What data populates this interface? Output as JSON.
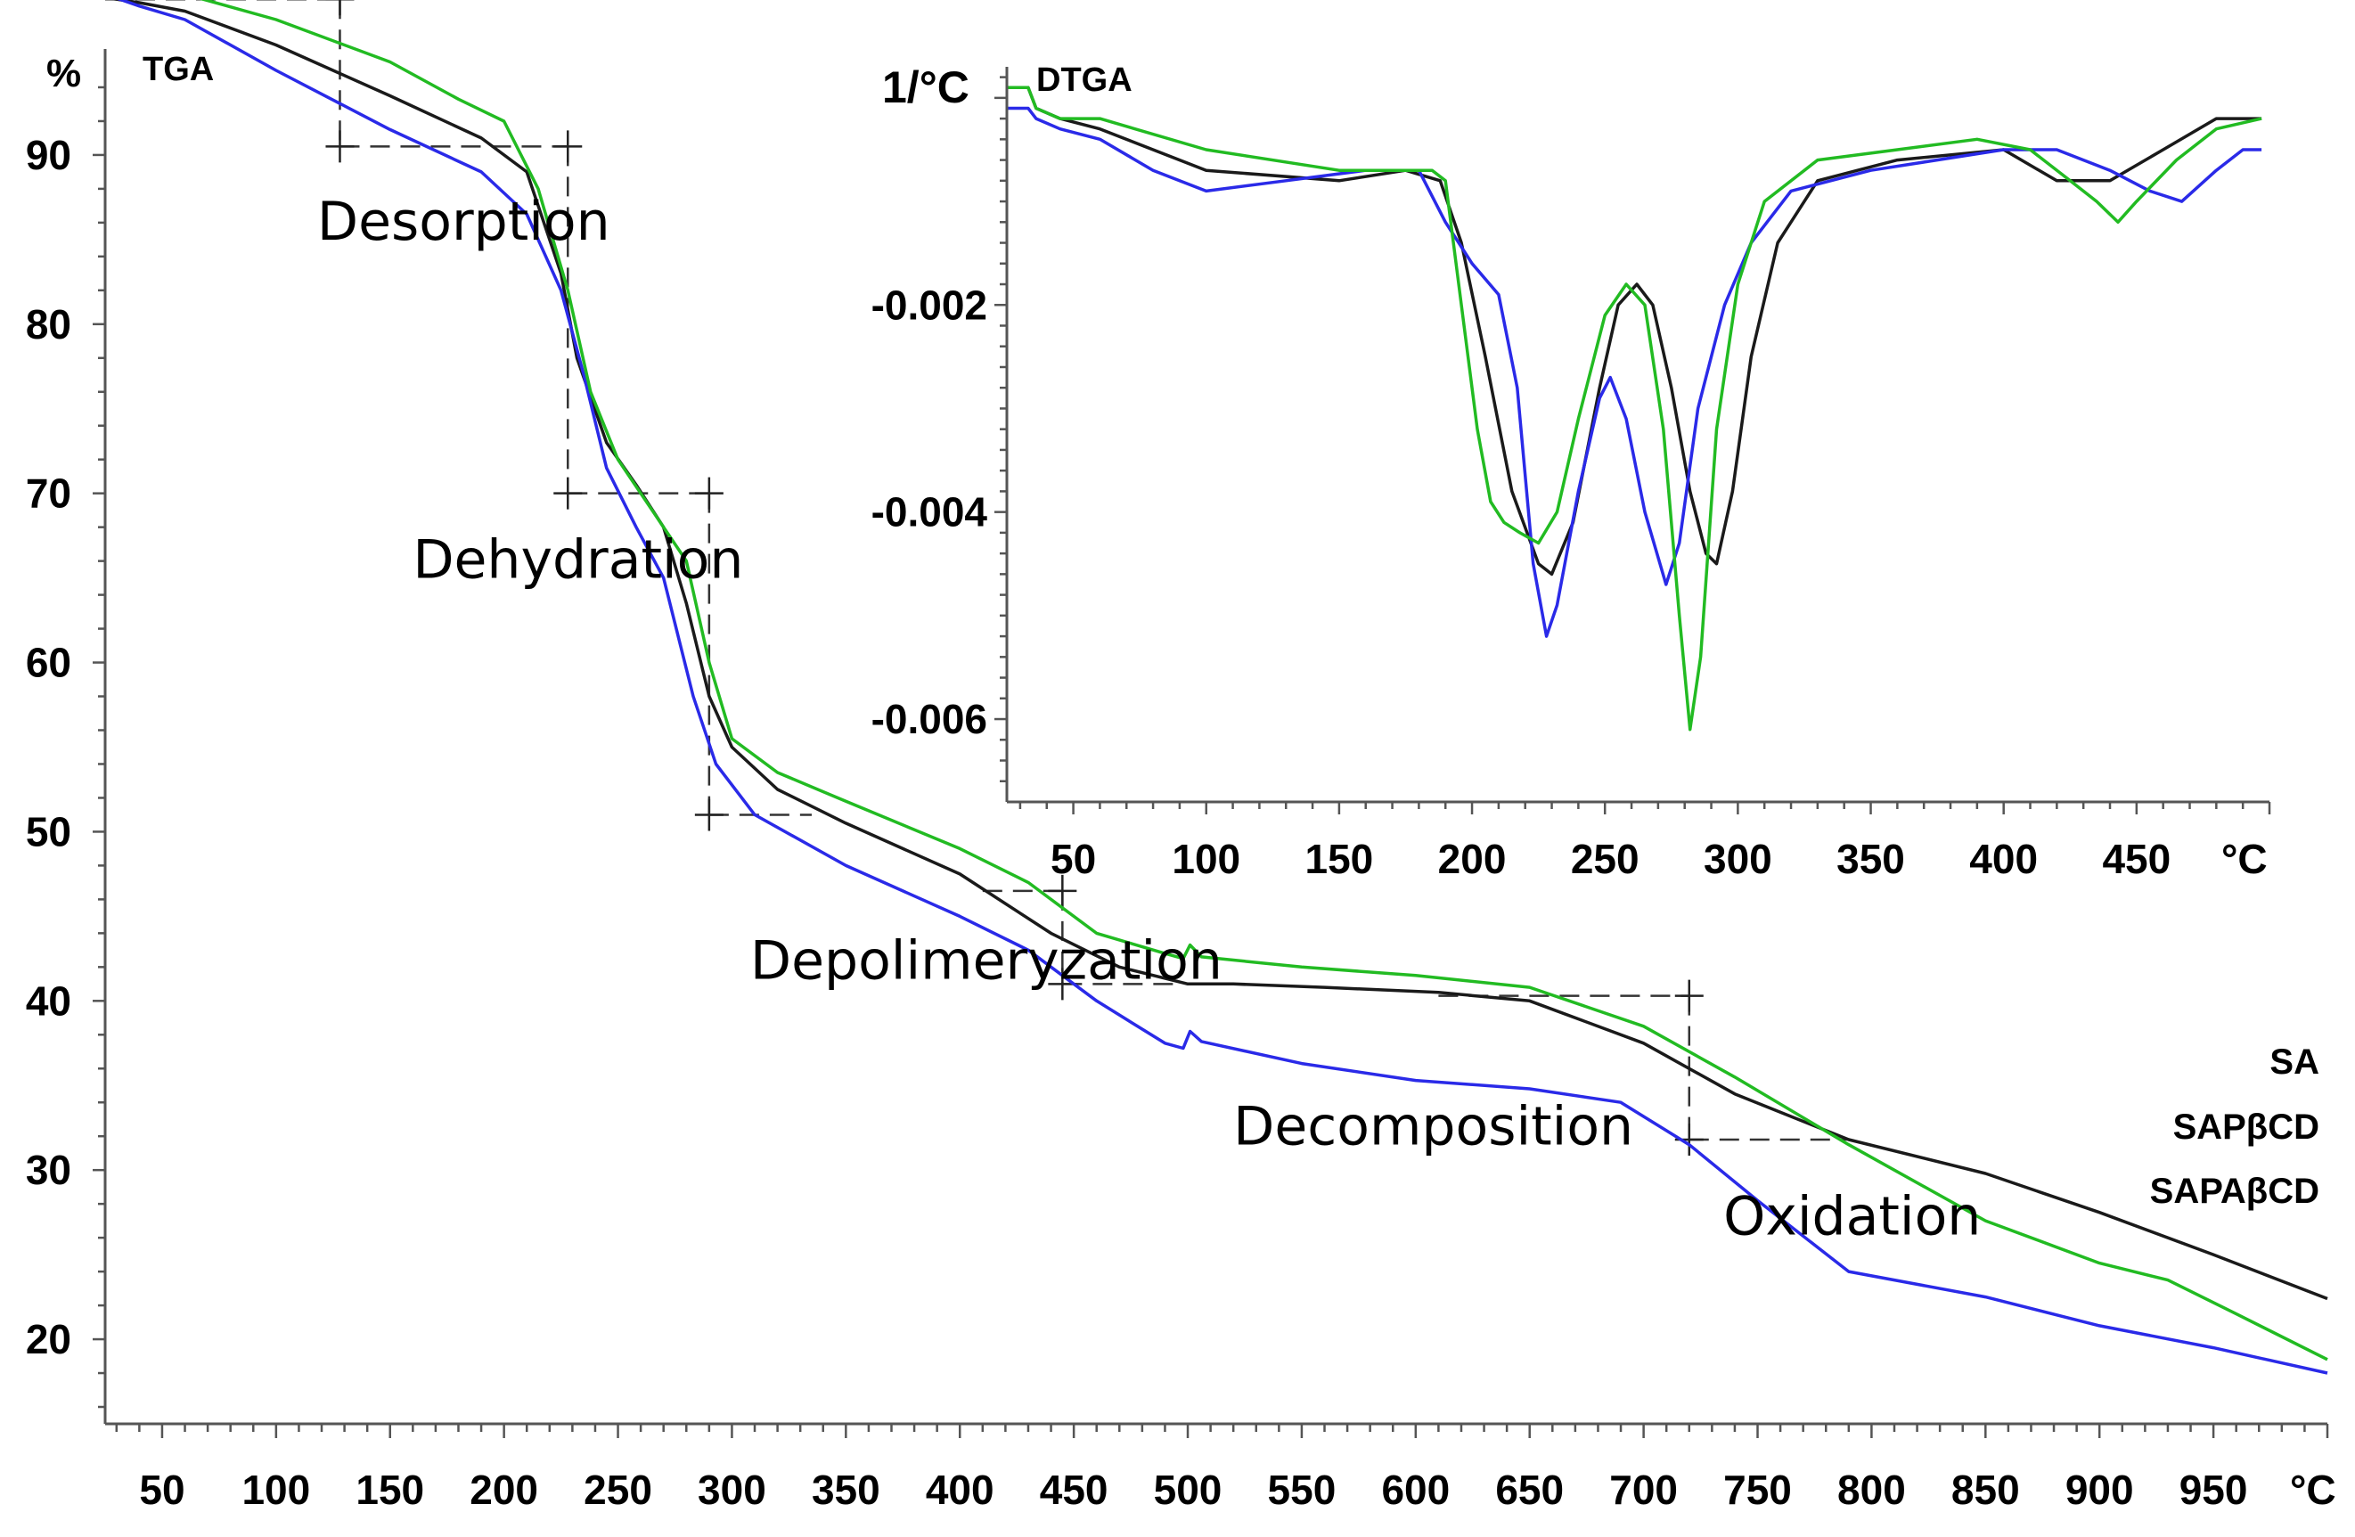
{
  "chart_data": [
    {
      "type": "line",
      "title": "TGA",
      "ylabel": "%",
      "xlabel": "°C",
      "xlim": [
        25,
        1000
      ],
      "ylim": [
        15,
        96
      ],
      "x_ticks": [
        50,
        100,
        150,
        200,
        250,
        300,
        350,
        400,
        450,
        500,
        550,
        600,
        650,
        700,
        750,
        800,
        850,
        900,
        950
      ],
      "y_ticks": [
        20,
        30,
        40,
        50,
        60,
        70,
        80,
        90
      ],
      "stages": [
        {
          "label": "Desorption",
          "x": 118,
          "y": 85
        },
        {
          "label": "Dehydration",
          "x": 160,
          "y": 65
        },
        {
          "label": "Depolimeryzation",
          "x": 308,
          "y": 41.3
        },
        {
          "label": "Decomposition",
          "x": 520,
          "y": 31.5
        },
        {
          "label": "Oxidation",
          "x": 735,
          "y": 26.2
        }
      ],
      "series": [
        {
          "name": "SA",
          "color": "#1a1a1a",
          "points": [
            [
              25,
              99.3
            ],
            [
              40,
              99
            ],
            [
              60,
              98.5
            ],
            [
              100,
              96.5
            ],
            [
              150,
              93.5
            ],
            [
              190,
              91
            ],
            [
              210,
              89
            ],
            [
              225,
              83
            ],
            [
              232,
              78
            ],
            [
              245,
              73
            ],
            [
              258,
              70.5
            ],
            [
              270,
              68
            ],
            [
              280,
              63.5
            ],
            [
              290,
              58
            ],
            [
              300,
              55
            ],
            [
              320,
              52.5
            ],
            [
              350,
              50.5
            ],
            [
              400,
              47.5
            ],
            [
              440,
              44
            ],
            [
              470,
              42
            ],
            [
              500,
              41
            ],
            [
              520,
              41
            ],
            [
              560,
              40.8
            ],
            [
              610,
              40.5
            ],
            [
              650,
              40
            ],
            [
              700,
              37.5
            ],
            [
              740,
              34.5
            ],
            [
              790,
              31.8
            ],
            [
              850,
              29.8
            ],
            [
              900,
              27.5
            ],
            [
              950,
              25
            ],
            [
              1000,
              22.4
            ]
          ]
        },
        {
          "name": "SAPβCD",
          "color": "#2a2ae8",
          "points": [
            [
              25,
              99.5
            ],
            [
              40,
              98.8
            ],
            [
              60,
              98
            ],
            [
              100,
              95
            ],
            [
              150,
              91.5
            ],
            [
              190,
              89
            ],
            [
              210,
              86.5
            ],
            [
              225,
              82
            ],
            [
              235,
              77
            ],
            [
              245,
              71.5
            ],
            [
              258,
              68
            ],
            [
              270,
              65
            ],
            [
              283,
              58
            ],
            [
              293,
              54
            ],
            [
              310,
              51
            ],
            [
              350,
              48
            ],
            [
              400,
              45
            ],
            [
              430,
              43
            ],
            [
              460,
              40
            ],
            [
              490,
              37.5
            ],
            [
              498,
              37.2
            ],
            [
              501,
              38.2
            ],
            [
              506,
              37.6
            ],
            [
              550,
              36.3
            ],
            [
              600,
              35.3
            ],
            [
              650,
              34.8
            ],
            [
              690,
              34
            ],
            [
              720,
              31.5
            ],
            [
              750,
              28.2
            ],
            [
              790,
              24
            ],
            [
              850,
              22.5
            ],
            [
              900,
              20.8
            ],
            [
              950,
              19.5
            ],
            [
              1000,
              18
            ]
          ]
        },
        {
          "name": "SAPAβCD",
          "color": "#22bb22",
          "points": [
            [
              25,
              99.3
            ],
            [
              40,
              99.8
            ],
            [
              60,
              99.5
            ],
            [
              100,
              98
            ],
            [
              150,
              95.5
            ],
            [
              180,
              93.3
            ],
            [
              200,
              92
            ],
            [
              215,
              88
            ],
            [
              228,
              82
            ],
            [
              238,
              76
            ],
            [
              250,
              72
            ],
            [
              265,
              69
            ],
            [
              280,
              66
            ],
            [
              290,
              60
            ],
            [
              300,
              55.5
            ],
            [
              320,
              53.5
            ],
            [
              350,
              51.8
            ],
            [
              400,
              49
            ],
            [
              430,
              47
            ],
            [
              460,
              44
            ],
            [
              490,
              42.8
            ],
            [
              498,
              42.5
            ],
            [
              501,
              43.3
            ],
            [
              506,
              42.6
            ],
            [
              550,
              42
            ],
            [
              600,
              41.5
            ],
            [
              650,
              40.8
            ],
            [
              700,
              38.5
            ],
            [
              740,
              35.5
            ],
            [
              790,
              31.5
            ],
            [
              850,
              27
            ],
            [
              900,
              24.5
            ],
            [
              930,
              23.5
            ],
            [
              960,
              21.5
            ],
            [
              1000,
              18.8
            ]
          ]
        }
      ],
      "guides": [
        [
          [
            25,
            99.2
          ],
          [
            128,
            99.2
          ]
        ],
        [
          [
            128,
            99.2
          ],
          [
            128,
            90.5
          ]
        ],
        [
          [
            128,
            90.5
          ],
          [
            228,
            90.5
          ]
        ],
        [
          [
            228,
            90.5
          ],
          [
            228,
            70
          ]
        ],
        [
          [
            228,
            70
          ],
          [
            290,
            70
          ]
        ],
        [
          [
            290,
            70
          ],
          [
            290,
            51
          ]
        ],
        [
          [
            290,
            51
          ],
          [
            335,
            51
          ]
        ],
        [
          [
            410,
            46.5
          ],
          [
            445,
            46.5
          ]
        ],
        [
          [
            445,
            46.5
          ],
          [
            445,
            41
          ]
        ],
        [
          [
            445,
            41
          ],
          [
            495,
            41
          ]
        ],
        [
          [
            610,
            40.3
          ],
          [
            720,
            40.3
          ]
        ],
        [
          [
            720,
            40.3
          ],
          [
            720,
            31.8
          ]
        ],
        [
          [
            720,
            31.8
          ],
          [
            790,
            31.8
          ]
        ]
      ],
      "crosses": [
        [
          128,
          99.2
        ],
        [
          128,
          90.5
        ],
        [
          228,
          90.5
        ],
        [
          228,
          70
        ],
        [
          290,
          70
        ],
        [
          290,
          51
        ],
        [
          445,
          46.5
        ],
        [
          445,
          41
        ],
        [
          720,
          40.3
        ],
        [
          720,
          31.8
        ]
      ],
      "legend": [
        "SA",
        "SAPβCD",
        "SAPAβCD"
      ],
      "legend_colors": [
        "#000000",
        "#2a2ae8",
        "#22bb22"
      ],
      "legend_placement": "right"
    },
    {
      "type": "line",
      "title": "DTGA",
      "ylabel": "1/°C",
      "xlabel": "°C",
      "xlim": [
        25,
        500
      ],
      "ylim": [
        -0.0068,
        0.0003
      ],
      "x_ticks": [
        50,
        100,
        150,
        200,
        250,
        300,
        350,
        400,
        450
      ],
      "y_ticks": [
        -0.002,
        -0.004,
        -0.006
      ],
      "y_tick_labels": [
        "-0.002",
        "-0.004",
        "-0.006"
      ],
      "series": [
        {
          "name": "SA",
          "color": "#1a1a1a",
          "points": [
            [
              25,
              0.0001
            ],
            [
              33,
              0.0001
            ],
            [
              36,
              -0.0001
            ],
            [
              45,
              -0.0002
            ],
            [
              60,
              -0.0003
            ],
            [
              100,
              -0.0007
            ],
            [
              150,
              -0.0008
            ],
            [
              175,
              -0.0007
            ],
            [
              188,
              -0.0008
            ],
            [
              196,
              -0.0014
            ],
            [
              205,
              -0.0025
            ],
            [
              215,
              -0.0038
            ],
            [
              225,
              -0.0045
            ],
            [
              230,
              -0.0046
            ],
            [
              238,
              -0.0041
            ],
            [
              248,
              -0.0028
            ],
            [
              255,
              -0.002
            ],
            [
              262,
              -0.0018
            ],
            [
              268,
              -0.002
            ],
            [
              275,
              -0.0028
            ],
            [
              282,
              -0.0038
            ],
            [
              288,
              -0.0044
            ],
            [
              292,
              -0.0045
            ],
            [
              298,
              -0.0038
            ],
            [
              305,
              -0.0025
            ],
            [
              315,
              -0.0014
            ],
            [
              330,
              -0.0008
            ],
            [
              360,
              -0.0006
            ],
            [
              400,
              -0.0005
            ],
            [
              420,
              -0.0008
            ],
            [
              440,
              -0.0008
            ],
            [
              460,
              -0.0005
            ],
            [
              480,
              -0.0002
            ],
            [
              497,
              -0.0002
            ]
          ]
        },
        {
          "name": "SAPβCD",
          "color": "#2a2ae8",
          "points": [
            [
              25,
              -0.0001
            ],
            [
              33,
              -0.0001
            ],
            [
              36,
              -0.0002
            ],
            [
              45,
              -0.0003
            ],
            [
              60,
              -0.0004
            ],
            [
              80,
              -0.0007
            ],
            [
              100,
              -0.0009
            ],
            [
              130,
              -0.0008
            ],
            [
              160,
              -0.0007
            ],
            [
              180,
              -0.0007
            ],
            [
              190,
              -0.0012
            ],
            [
              200,
              -0.0016
            ],
            [
              210,
              -0.0019
            ],
            [
              217,
              -0.0028
            ],
            [
              223,
              -0.0045
            ],
            [
              228,
              -0.0052
            ],
            [
              232,
              -0.0049
            ],
            [
              240,
              -0.0038
            ],
            [
              248,
              -0.0029
            ],
            [
              252,
              -0.0027
            ],
            [
              258,
              -0.0031
            ],
            [
              265,
              -0.004
            ],
            [
              273,
              -0.0047
            ],
            [
              278,
              -0.0043
            ],
            [
              285,
              -0.003
            ],
            [
              295,
              -0.002
            ],
            [
              305,
              -0.0014
            ],
            [
              320,
              -0.0009
            ],
            [
              350,
              -0.0007
            ],
            [
              400,
              -0.0005
            ],
            [
              420,
              -0.0005
            ],
            [
              440,
              -0.0007
            ],
            [
              455,
              -0.0009
            ],
            [
              467,
              -0.001
            ],
            [
              480,
              -0.0007
            ],
            [
              490,
              -0.0005
            ],
            [
              497,
              -0.0005
            ]
          ]
        },
        {
          "name": "SAPAβCD",
          "color": "#22bb22",
          "points": [
            [
              25,
              0.0001
            ],
            [
              33,
              0.0001
            ],
            [
              36,
              -0.0001
            ],
            [
              45,
              -0.0002
            ],
            [
              60,
              -0.0002
            ],
            [
              100,
              -0.0005
            ],
            [
              150,
              -0.0007
            ],
            [
              185,
              -0.0007
            ],
            [
              190,
              -0.0008
            ],
            [
              196,
              -0.002
            ],
            [
              202,
              -0.0032
            ],
            [
              207,
              -0.0039
            ],
            [
              212,
              -0.0041
            ],
            [
              218,
              -0.0042
            ],
            [
              225,
              -0.0043
            ],
            [
              232,
              -0.004
            ],
            [
              240,
              -0.0031
            ],
            [
              250,
              -0.0021
            ],
            [
              258,
              -0.0018
            ],
            [
              265,
              -0.002
            ],
            [
              272,
              -0.0032
            ],
            [
              278,
              -0.005
            ],
            [
              282,
              -0.0061
            ],
            [
              286,
              -0.0054
            ],
            [
              292,
              -0.0032
            ],
            [
              300,
              -0.0018
            ],
            [
              310,
              -0.001
            ],
            [
              330,
              -0.0006
            ],
            [
              360,
              -0.0005
            ],
            [
              390,
              -0.0004
            ],
            [
              410,
              -0.0005
            ],
            [
              425,
              -0.0008
            ],
            [
              435,
              -0.001
            ],
            [
              443,
              -0.0012
            ],
            [
              450,
              -0.001
            ],
            [
              465,
              -0.0006
            ],
            [
              480,
              -0.0003
            ],
            [
              497,
              -0.0002
            ]
          ]
        }
      ]
    }
  ]
}
